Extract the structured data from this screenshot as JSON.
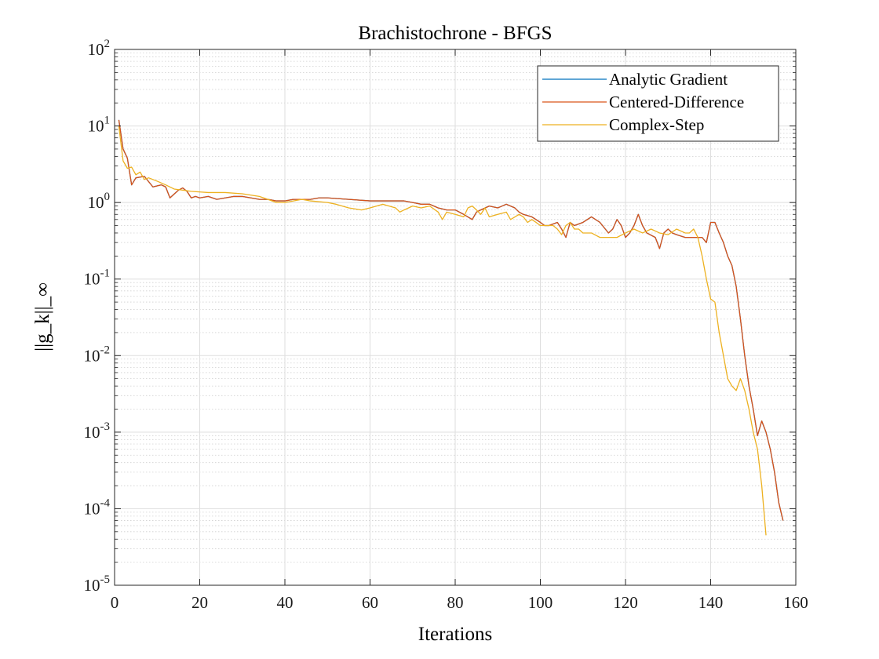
{
  "chart_data": {
    "type": "line",
    "title": "Brachistochrone - BFGS",
    "xlabel": "Iterations",
    "ylabel": "||g_k||_∞",
    "xlim": [
      0,
      160
    ],
    "ylim": [
      1e-05,
      100
    ],
    "yscale": "log",
    "grid": true,
    "minor_grid": true,
    "legend_position": "top-right",
    "x_ticks": [
      0,
      20,
      40,
      60,
      80,
      100,
      120,
      140,
      160
    ],
    "y_ticks": [
      {
        "base": "10",
        "exp": "-5"
      },
      {
        "base": "10",
        "exp": "-4"
      },
      {
        "base": "10",
        "exp": "-3"
      },
      {
        "base": "10",
        "exp": "-2"
      },
      {
        "base": "10",
        "exp": "-1"
      },
      {
        "base": "10",
        "exp": "0"
      },
      {
        "base": "10",
        "exp": "1"
      },
      {
        "base": "10",
        "exp": "2"
      }
    ],
    "series": [
      {
        "name": "Analytic Gradient",
        "color": "#0072BD",
        "points": [
          [
            1,
            12
          ],
          [
            2,
            5
          ],
          [
            3,
            3.8
          ],
          [
            4,
            1.7
          ],
          [
            5,
            2.1
          ],
          [
            7,
            2.2
          ],
          [
            9,
            1.6
          ],
          [
            11,
            1.7
          ],
          [
            12,
            1.6
          ],
          [
            13,
            1.15
          ],
          [
            15,
            1.45
          ],
          [
            16,
            1.55
          ],
          [
            17,
            1.4
          ],
          [
            18,
            1.15
          ],
          [
            19,
            1.2
          ],
          [
            20,
            1.15
          ],
          [
            22,
            1.2
          ],
          [
            24,
            1.1
          ],
          [
            26,
            1.15
          ],
          [
            28,
            1.2
          ],
          [
            30,
            1.2
          ],
          [
            32,
            1.15
          ],
          [
            34,
            1.1
          ],
          [
            36,
            1.1
          ],
          [
            38,
            1.05
          ],
          [
            40,
            1.05
          ],
          [
            42,
            1.1
          ],
          [
            44,
            1.1
          ],
          [
            46,
            1.1
          ],
          [
            48,
            1.15
          ],
          [
            50,
            1.15
          ],
          [
            55,
            1.1
          ],
          [
            60,
            1.05
          ],
          [
            65,
            1.05
          ],
          [
            68,
            1.05
          ],
          [
            70,
            1.0
          ],
          [
            72,
            0.95
          ],
          [
            74,
            0.95
          ],
          [
            76,
            0.85
          ],
          [
            78,
            0.8
          ],
          [
            80,
            0.8
          ],
          [
            82,
            0.7
          ],
          [
            84,
            0.6
          ],
          [
            85,
            0.75
          ],
          [
            86,
            0.8
          ],
          [
            88,
            0.9
          ],
          [
            90,
            0.85
          ],
          [
            92,
            0.95
          ],
          [
            93,
            0.9
          ],
          [
            94,
            0.85
          ],
          [
            95,
            0.75
          ],
          [
            96,
            0.7
          ],
          [
            98,
            0.65
          ],
          [
            100,
            0.55
          ],
          [
            101,
            0.5
          ],
          [
            102,
            0.5
          ],
          [
            104,
            0.55
          ],
          [
            105,
            0.45
          ],
          [
            106,
            0.35
          ],
          [
            107,
            0.55
          ],
          [
            108,
            0.5
          ],
          [
            110,
            0.55
          ],
          [
            112,
            0.65
          ],
          [
            114,
            0.55
          ],
          [
            116,
            0.4
          ],
          [
            117,
            0.45
          ],
          [
            118,
            0.6
          ],
          [
            119,
            0.5
          ],
          [
            120,
            0.35
          ],
          [
            121,
            0.4
          ],
          [
            122,
            0.5
          ],
          [
            123,
            0.7
          ],
          [
            124,
            0.5
          ],
          [
            125,
            0.4
          ],
          [
            127,
            0.35
          ],
          [
            128,
            0.25
          ],
          [
            129,
            0.4
          ],
          [
            130,
            0.45
          ],
          [
            131,
            0.4
          ],
          [
            132,
            0.38
          ],
          [
            134,
            0.35
          ],
          [
            136,
            0.35
          ],
          [
            138,
            0.35
          ],
          [
            139,
            0.3
          ],
          [
            140,
            0.55
          ],
          [
            141,
            0.55
          ],
          [
            142,
            0.4
          ],
          [
            143,
            0.3
          ],
          [
            144,
            0.2
          ],
          [
            145,
            0.15
          ],
          [
            146,
            0.08
          ],
          [
            147,
            0.03
          ],
          [
            148,
            0.01
          ],
          [
            149,
            0.004
          ],
          [
            150,
            0.002
          ],
          [
            151,
            0.0009
          ],
          [
            152,
            0.0014
          ],
          [
            153,
            0.001
          ],
          [
            154,
            0.0006
          ],
          [
            155,
            0.0003
          ],
          [
            156,
            0.00012
          ],
          [
            157,
            7e-05
          ]
        ]
      },
      {
        "name": "Centered-Difference",
        "color": "#D95319",
        "points": [
          [
            1,
            12
          ],
          [
            2,
            5
          ],
          [
            3,
            3.8
          ],
          [
            4,
            1.7
          ],
          [
            5,
            2.1
          ],
          [
            7,
            2.2
          ],
          [
            9,
            1.6
          ],
          [
            11,
            1.7
          ],
          [
            12,
            1.6
          ],
          [
            13,
            1.15
          ],
          [
            15,
            1.45
          ],
          [
            16,
            1.55
          ],
          [
            17,
            1.4
          ],
          [
            18,
            1.15
          ],
          [
            19,
            1.2
          ],
          [
            20,
            1.15
          ],
          [
            22,
            1.2
          ],
          [
            24,
            1.1
          ],
          [
            26,
            1.15
          ],
          [
            28,
            1.2
          ],
          [
            30,
            1.2
          ],
          [
            32,
            1.15
          ],
          [
            34,
            1.1
          ],
          [
            36,
            1.1
          ],
          [
            38,
            1.05
          ],
          [
            40,
            1.05
          ],
          [
            42,
            1.1
          ],
          [
            44,
            1.1
          ],
          [
            46,
            1.1
          ],
          [
            48,
            1.15
          ],
          [
            50,
            1.15
          ],
          [
            55,
            1.1
          ],
          [
            60,
            1.05
          ],
          [
            65,
            1.05
          ],
          [
            68,
            1.05
          ],
          [
            70,
            1.0
          ],
          [
            72,
            0.95
          ],
          [
            74,
            0.95
          ],
          [
            76,
            0.85
          ],
          [
            78,
            0.8
          ],
          [
            80,
            0.8
          ],
          [
            82,
            0.7
          ],
          [
            84,
            0.6
          ],
          [
            85,
            0.75
          ],
          [
            86,
            0.8
          ],
          [
            88,
            0.9
          ],
          [
            90,
            0.85
          ],
          [
            92,
            0.95
          ],
          [
            93,
            0.9
          ],
          [
            94,
            0.85
          ],
          [
            95,
            0.75
          ],
          [
            96,
            0.7
          ],
          [
            98,
            0.65
          ],
          [
            100,
            0.55
          ],
          [
            101,
            0.5
          ],
          [
            102,
            0.5
          ],
          [
            104,
            0.55
          ],
          [
            105,
            0.45
          ],
          [
            106,
            0.35
          ],
          [
            107,
            0.55
          ],
          [
            108,
            0.5
          ],
          [
            110,
            0.55
          ],
          [
            112,
            0.65
          ],
          [
            114,
            0.55
          ],
          [
            116,
            0.4
          ],
          [
            117,
            0.45
          ],
          [
            118,
            0.6
          ],
          [
            119,
            0.5
          ],
          [
            120,
            0.35
          ],
          [
            121,
            0.4
          ],
          [
            122,
            0.5
          ],
          [
            123,
            0.7
          ],
          [
            124,
            0.5
          ],
          [
            125,
            0.4
          ],
          [
            127,
            0.35
          ],
          [
            128,
            0.25
          ],
          [
            129,
            0.4
          ],
          [
            130,
            0.45
          ],
          [
            131,
            0.4
          ],
          [
            132,
            0.38
          ],
          [
            134,
            0.35
          ],
          [
            136,
            0.35
          ],
          [
            138,
            0.35
          ],
          [
            139,
            0.3
          ],
          [
            140,
            0.55
          ],
          [
            141,
            0.55
          ],
          [
            142,
            0.4
          ],
          [
            143,
            0.3
          ],
          [
            144,
            0.2
          ],
          [
            145,
            0.15
          ],
          [
            146,
            0.08
          ],
          [
            147,
            0.03
          ],
          [
            148,
            0.01
          ],
          [
            149,
            0.004
          ],
          [
            150,
            0.002
          ],
          [
            151,
            0.0009
          ],
          [
            152,
            0.0014
          ],
          [
            153,
            0.001
          ],
          [
            154,
            0.0006
          ],
          [
            155,
            0.0003
          ],
          [
            156,
            0.00012
          ],
          [
            157,
            7e-05
          ]
        ]
      },
      {
        "name": "Complex-Step",
        "color": "#EDB120",
        "points": [
          [
            1,
            10
          ],
          [
            2,
            3.5
          ],
          [
            3,
            2.8
          ],
          [
            4,
            2.9
          ],
          [
            5,
            2.3
          ],
          [
            6,
            2.5
          ],
          [
            7,
            2.0
          ],
          [
            8,
            2.1
          ],
          [
            10,
            1.9
          ],
          [
            12,
            1.7
          ],
          [
            14,
            1.5
          ],
          [
            16,
            1.45
          ],
          [
            18,
            1.4
          ],
          [
            22,
            1.35
          ],
          [
            26,
            1.35
          ],
          [
            30,
            1.3
          ],
          [
            34,
            1.2
          ],
          [
            36,
            1.1
          ],
          [
            38,
            1.0
          ],
          [
            40,
            1.0
          ],
          [
            42,
            1.05
          ],
          [
            44,
            1.1
          ],
          [
            46,
            1.05
          ],
          [
            50,
            1.0
          ],
          [
            52,
            0.95
          ],
          [
            55,
            0.85
          ],
          [
            58,
            0.8
          ],
          [
            60,
            0.85
          ],
          [
            63,
            0.95
          ],
          [
            66,
            0.85
          ],
          [
            67,
            0.75
          ],
          [
            68,
            0.8
          ],
          [
            70,
            0.9
          ],
          [
            72,
            0.85
          ],
          [
            74,
            0.9
          ],
          [
            76,
            0.75
          ],
          [
            77,
            0.6
          ],
          [
            78,
            0.75
          ],
          [
            80,
            0.7
          ],
          [
            82,
            0.65
          ],
          [
            83,
            0.85
          ],
          [
            84,
            0.9
          ],
          [
            85,
            0.8
          ],
          [
            86,
            0.7
          ],
          [
            87,
            0.85
          ],
          [
            88,
            0.65
          ],
          [
            90,
            0.7
          ],
          [
            92,
            0.75
          ],
          [
            93,
            0.6
          ],
          [
            95,
            0.7
          ],
          [
            96,
            0.65
          ],
          [
            97,
            0.55
          ],
          [
            98,
            0.6
          ],
          [
            99,
            0.55
          ],
          [
            100,
            0.5
          ],
          [
            101,
            0.5
          ],
          [
            102,
            0.5
          ],
          [
            103,
            0.5
          ],
          [
            104,
            0.45
          ],
          [
            105,
            0.38
          ],
          [
            106,
            0.5
          ],
          [
            107,
            0.55
          ],
          [
            108,
            0.45
          ],
          [
            109,
            0.45
          ],
          [
            110,
            0.4
          ],
          [
            112,
            0.4
          ],
          [
            114,
            0.35
          ],
          [
            118,
            0.35
          ],
          [
            120,
            0.4
          ],
          [
            122,
            0.45
          ],
          [
            124,
            0.4
          ],
          [
            126,
            0.45
          ],
          [
            128,
            0.4
          ],
          [
            130,
            0.38
          ],
          [
            132,
            0.45
          ],
          [
            134,
            0.4
          ],
          [
            135,
            0.4
          ],
          [
            136,
            0.45
          ],
          [
            137,
            0.35
          ],
          [
            138,
            0.2
          ],
          [
            139,
            0.1
          ],
          [
            140,
            0.055
          ],
          [
            141,
            0.05
          ],
          [
            142,
            0.02
          ],
          [
            143,
            0.01
          ],
          [
            144,
            0.005
          ],
          [
            145,
            0.004
          ],
          [
            146,
            0.0035
          ],
          [
            147,
            0.005
          ],
          [
            148,
            0.0035
          ],
          [
            149,
            0.002
          ],
          [
            150,
            0.001
          ],
          [
            151,
            0.0006
          ],
          [
            152,
            0.0002
          ],
          [
            153,
            4.5e-05
          ]
        ]
      }
    ]
  }
}
